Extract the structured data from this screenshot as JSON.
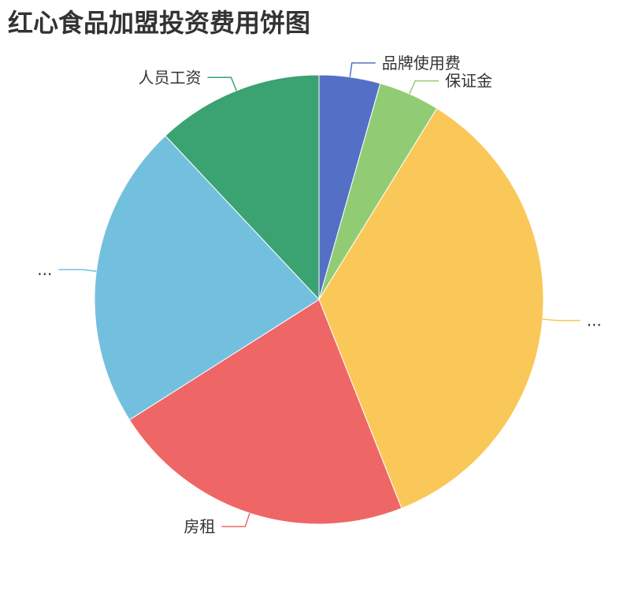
{
  "chart_data": {
    "type": "pie",
    "title": "红心食品加盟投资费用饼图",
    "slices": [
      {
        "name": "品牌使用费",
        "value": 4.4,
        "label": "品牌使用费",
        "color": "#5470c6"
      },
      {
        "name": "保证金",
        "value": 4.4,
        "label": "保证金",
        "color": "#91cc75"
      },
      {
        "name": "",
        "value": 35.2,
        "label": "...",
        "color": "#fac858"
      },
      {
        "name": "房租",
        "value": 22.0,
        "label": "房租",
        "color": "#ee6666"
      },
      {
        "name": "",
        "value": 22.0,
        "label": "...",
        "color": "#73c0de"
      },
      {
        "name": "人员工资",
        "value": 12.0,
        "label": "人员工资",
        "color": "#3ba272"
      }
    ],
    "start_angle": 0,
    "direction": "clockwise",
    "legend": "none"
  }
}
